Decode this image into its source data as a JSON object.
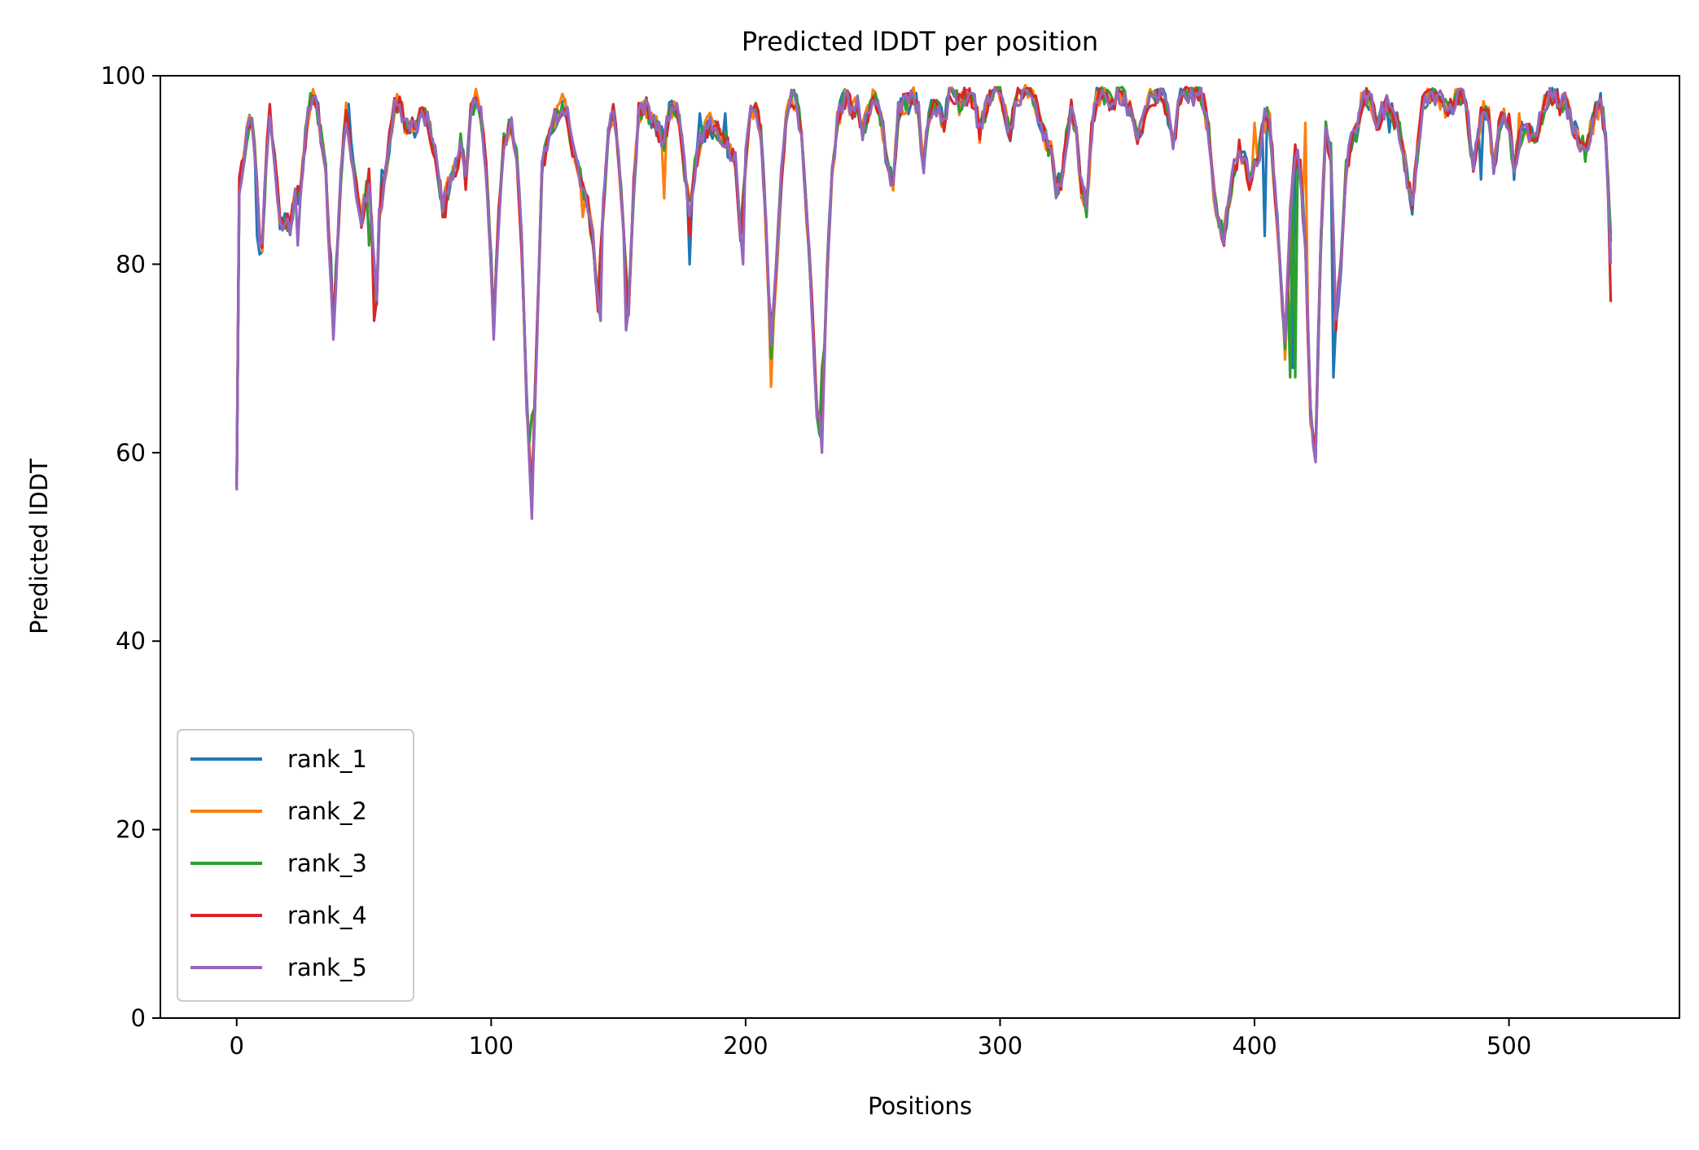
{
  "chart_data": {
    "type": "line",
    "title": "Predicted lDDT per position",
    "xlabel": "Positions",
    "ylabel": "Predicted lDDT",
    "xlim": [
      -30,
      567
    ],
    "ylim": [
      0,
      100
    ],
    "xticks": [
      0,
      100,
      200,
      300,
      400,
      500
    ],
    "yticks": [
      0,
      20,
      40,
      60,
      80,
      100
    ],
    "grid": false,
    "legend_position": "lower-left",
    "colors": [
      "#1f77b4",
      "#ff7f0e",
      "#2ca02c",
      "#d62728",
      "#9467bd"
    ],
    "base_profile": [
      [
        0,
        57
      ],
      [
        1,
        88
      ],
      [
        4,
        94
      ],
      [
        6,
        96
      ],
      [
        8,
        89
      ],
      [
        9,
        82
      ],
      [
        10,
        82
      ],
      [
        12,
        93
      ],
      [
        13,
        96
      ],
      [
        15,
        91
      ],
      [
        17,
        84
      ],
      [
        19,
        85
      ],
      [
        21,
        84
      ],
      [
        23,
        87
      ],
      [
        25,
        88
      ],
      [
        28,
        96
      ],
      [
        30,
        98
      ],
      [
        32,
        96
      ],
      [
        35,
        90
      ],
      [
        37,
        78
      ],
      [
        38,
        73
      ],
      [
        41,
        90
      ],
      [
        43,
        96
      ],
      [
        45,
        92
      ],
      [
        47,
        88
      ],
      [
        49,
        85
      ],
      [
        52,
        89
      ],
      [
        54,
        80
      ],
      [
        55,
        76
      ],
      [
        56,
        85
      ],
      [
        58,
        89
      ],
      [
        60,
        93
      ],
      [
        62,
        97
      ],
      [
        64,
        97
      ],
      [
        66,
        95
      ],
      [
        68,
        95
      ],
      [
        70,
        94
      ],
      [
        73,
        96
      ],
      [
        75,
        95
      ],
      [
        77,
        93
      ],
      [
        79,
        90
      ],
      [
        81,
        86
      ],
      [
        83,
        88
      ],
      [
        85,
        90
      ],
      [
        87,
        91
      ],
      [
        88,
        93
      ],
      [
        90,
        89
      ],
      [
        92,
        96
      ],
      [
        94,
        98
      ],
      [
        96,
        96
      ],
      [
        98,
        90
      ],
      [
        100,
        80
      ],
      [
        101,
        73
      ],
      [
        103,
        85
      ],
      [
        105,
        93
      ],
      [
        108,
        95
      ],
      [
        110,
        92
      ],
      [
        112,
        82
      ],
      [
        114,
        65
      ],
      [
        116,
        55
      ],
      [
        118,
        72
      ],
      [
        120,
        90
      ],
      [
        122,
        93
      ],
      [
        124,
        95
      ],
      [
        126,
        96
      ],
      [
        128,
        97
      ],
      [
        130,
        96
      ],
      [
        132,
        92
      ],
      [
        134,
        90
      ],
      [
        136,
        88
      ],
      [
        138,
        86
      ],
      [
        140,
        83
      ],
      [
        142,
        76
      ],
      [
        144,
        86
      ],
      [
        146,
        94
      ],
      [
        148,
        96
      ],
      [
        150,
        92
      ],
      [
        152,
        83
      ],
      [
        154,
        75
      ],
      [
        156,
        88
      ],
      [
        158,
        96
      ],
      [
        160,
        97
      ],
      [
        162,
        96
      ],
      [
        164,
        95
      ],
      [
        166,
        94
      ],
      [
        168,
        93
      ],
      [
        170,
        96
      ],
      [
        172,
        97
      ],
      [
        174,
        95
      ],
      [
        176,
        90
      ],
      [
        178,
        86
      ],
      [
        180,
        90
      ],
      [
        182,
        93
      ],
      [
        184,
        94
      ],
      [
        186,
        95
      ],
      [
        188,
        94
      ],
      [
        190,
        94
      ],
      [
        192,
        93
      ],
      [
        194,
        92
      ],
      [
        196,
        91
      ],
      [
        198,
        83
      ],
      [
        200,
        91
      ],
      [
        202,
        96
      ],
      [
        204,
        97
      ],
      [
        206,
        94
      ],
      [
        208,
        84
      ],
      [
        210,
        71
      ],
      [
        212,
        79
      ],
      [
        214,
        89
      ],
      [
        216,
        96
      ],
      [
        218,
        98
      ],
      [
        220,
        97
      ],
      [
        222,
        94
      ],
      [
        224,
        85
      ],
      [
        226,
        76
      ],
      [
        228,
        64
      ],
      [
        230,
        62
      ],
      [
        232,
        79
      ],
      [
        234,
        90
      ],
      [
        236,
        95
      ],
      [
        238,
        97
      ],
      [
        240,
        98
      ],
      [
        242,
        96
      ],
      [
        244,
        97
      ],
      [
        246,
        94
      ],
      [
        248,
        96
      ],
      [
        250,
        98
      ],
      [
        252,
        97
      ],
      [
        254,
        94
      ],
      [
        256,
        90
      ],
      [
        258,
        89
      ],
      [
        260,
        96
      ],
      [
        262,
        97
      ],
      [
        264,
        97
      ],
      [
        266,
        98
      ],
      [
        268,
        96
      ],
      [
        270,
        90
      ],
      [
        272,
        96
      ],
      [
        274,
        97
      ],
      [
        276,
        96
      ],
      [
        278,
        95
      ],
      [
        280,
        98
      ],
      [
        282,
        98
      ],
      [
        284,
        97
      ],
      [
        286,
        98
      ],
      [
        288,
        98
      ],
      [
        290,
        97
      ],
      [
        292,
        94
      ],
      [
        294,
        96
      ],
      [
        296,
        98
      ],
      [
        298,
        99
      ],
      [
        300,
        98
      ],
      [
        302,
        96
      ],
      [
        304,
        94
      ],
      [
        306,
        97
      ],
      [
        308,
        98
      ],
      [
        310,
        99
      ],
      [
        312,
        98
      ],
      [
        314,
        97
      ],
      [
        316,
        95
      ],
      [
        318,
        93
      ],
      [
        320,
        92
      ],
      [
        322,
        88
      ],
      [
        324,
        89
      ],
      [
        326,
        93
      ],
      [
        328,
        97
      ],
      [
        330,
        94
      ],
      [
        332,
        88
      ],
      [
        334,
        86
      ],
      [
        336,
        94
      ],
      [
        338,
        98
      ],
      [
        340,
        98
      ],
      [
        342,
        98
      ],
      [
        344,
        97
      ],
      [
        346,
        98
      ],
      [
        348,
        98
      ],
      [
        350,
        97
      ],
      [
        352,
        96
      ],
      [
        354,
        93
      ],
      [
        356,
        95
      ],
      [
        358,
        97
      ],
      [
        360,
        98
      ],
      [
        362,
        98
      ],
      [
        364,
        98
      ],
      [
        366,
        96
      ],
      [
        368,
        92
      ],
      [
        370,
        97
      ],
      [
        372,
        98
      ],
      [
        374,
        98
      ],
      [
        376,
        98
      ],
      [
        378,
        98
      ],
      [
        380,
        97
      ],
      [
        382,
        94
      ],
      [
        384,
        88
      ],
      [
        386,
        84
      ],
      [
        388,
        83
      ],
      [
        390,
        87
      ],
      [
        392,
        90
      ],
      [
        394,
        92
      ],
      [
        396,
        91
      ],
      [
        398,
        89
      ],
      [
        400,
        90
      ],
      [
        402,
        92
      ],
      [
        404,
        96
      ],
      [
        406,
        95
      ],
      [
        408,
        88
      ],
      [
        410,
        80
      ],
      [
        412,
        71
      ],
      [
        414,
        85
      ],
      [
        416,
        92
      ],
      [
        418,
        90
      ],
      [
        420,
        82
      ],
      [
        422,
        64
      ],
      [
        424,
        60
      ],
      [
        426,
        82
      ],
      [
        428,
        94
      ],
      [
        430,
        92
      ],
      [
        432,
        74
      ],
      [
        434,
        80
      ],
      [
        436,
        90
      ],
      [
        438,
        93
      ],
      [
        440,
        94
      ],
      [
        442,
        97
      ],
      [
        444,
        98
      ],
      [
        446,
        97
      ],
      [
        448,
        95
      ],
      [
        450,
        96
      ],
      [
        452,
        97
      ],
      [
        454,
        96
      ],
      [
        456,
        95
      ],
      [
        458,
        93
      ],
      [
        460,
        89
      ],
      [
        462,
        86
      ],
      [
        464,
        92
      ],
      [
        466,
        97
      ],
      [
        468,
        98
      ],
      [
        470,
        98
      ],
      [
        472,
        98
      ],
      [
        474,
        97
      ],
      [
        476,
        96
      ],
      [
        478,
        97
      ],
      [
        480,
        98
      ],
      [
        482,
        98
      ],
      [
        484,
        95
      ],
      [
        486,
        90
      ],
      [
        488,
        94
      ],
      [
        490,
        97
      ],
      [
        492,
        96
      ],
      [
        494,
        90
      ],
      [
        496,
        94
      ],
      [
        498,
        96
      ],
      [
        500,
        95
      ],
      [
        502,
        90
      ],
      [
        504,
        93
      ],
      [
        506,
        95
      ],
      [
        508,
        94
      ],
      [
        510,
        93
      ],
      [
        512,
        95
      ],
      [
        514,
        97
      ],
      [
        516,
        98
      ],
      [
        518,
        98
      ],
      [
        520,
        97
      ],
      [
        522,
        97
      ],
      [
        524,
        96
      ],
      [
        526,
        94
      ],
      [
        528,
        93
      ],
      [
        530,
        92
      ],
      [
        532,
        94
      ],
      [
        534,
        96
      ],
      [
        536,
        97
      ],
      [
        538,
        94
      ],
      [
        540,
        82
      ]
    ],
    "series": [
      {
        "name": "rank_1",
        "noise_seed": 11,
        "overrides": [
          [
            8,
            83
          ],
          [
            37,
            81
          ],
          [
            44,
            97
          ],
          [
            52,
            83
          ],
          [
            57,
            90
          ],
          [
            178,
            80
          ],
          [
            182,
            96
          ],
          [
            192,
            96
          ],
          [
            404,
            83
          ],
          [
            415,
            69
          ],
          [
            431,
            68
          ],
          [
            453,
            94
          ],
          [
            489,
            89
          ]
        ]
      },
      {
        "name": "rank_2",
        "noise_seed": 23,
        "overrides": [
          [
            116,
            57
          ],
          [
            136,
            85
          ],
          [
            168,
            87
          ],
          [
            210,
            67
          ],
          [
            310,
            99
          ],
          [
            328,
            97
          ],
          [
            400,
            95
          ],
          [
            404,
            94
          ],
          [
            420,
            95
          ],
          [
            504,
            96
          ]
        ]
      },
      {
        "name": "rank_3",
        "noise_seed": 37,
        "overrides": [
          [
            52,
            82
          ],
          [
            116,
            64
          ],
          [
            210,
            70
          ],
          [
            230,
            69
          ],
          [
            334,
            85
          ],
          [
            414,
            68
          ],
          [
            416,
            68
          ]
        ]
      },
      {
        "name": "rank_4",
        "noise_seed": 41,
        "overrides": [
          [
            54,
            74
          ],
          [
            82,
            85
          ],
          [
            178,
            83
          ],
          [
            210,
            74
          ],
          [
            230,
            63
          ],
          [
            412,
            73
          ],
          [
            540,
            76
          ]
        ]
      },
      {
        "name": "rank_5",
        "noise_seed": 53,
        "overrides": [
          [
            0,
            56
          ],
          [
            24,
            82
          ],
          [
            38,
            72
          ],
          [
            101,
            72
          ],
          [
            116,
            53
          ],
          [
            143,
            74
          ],
          [
            153,
            73
          ],
          [
            199,
            80
          ],
          [
            230,
            60
          ],
          [
            387,
            83
          ],
          [
            424,
            59
          ],
          [
            540,
            80
          ]
        ]
      }
    ]
  }
}
